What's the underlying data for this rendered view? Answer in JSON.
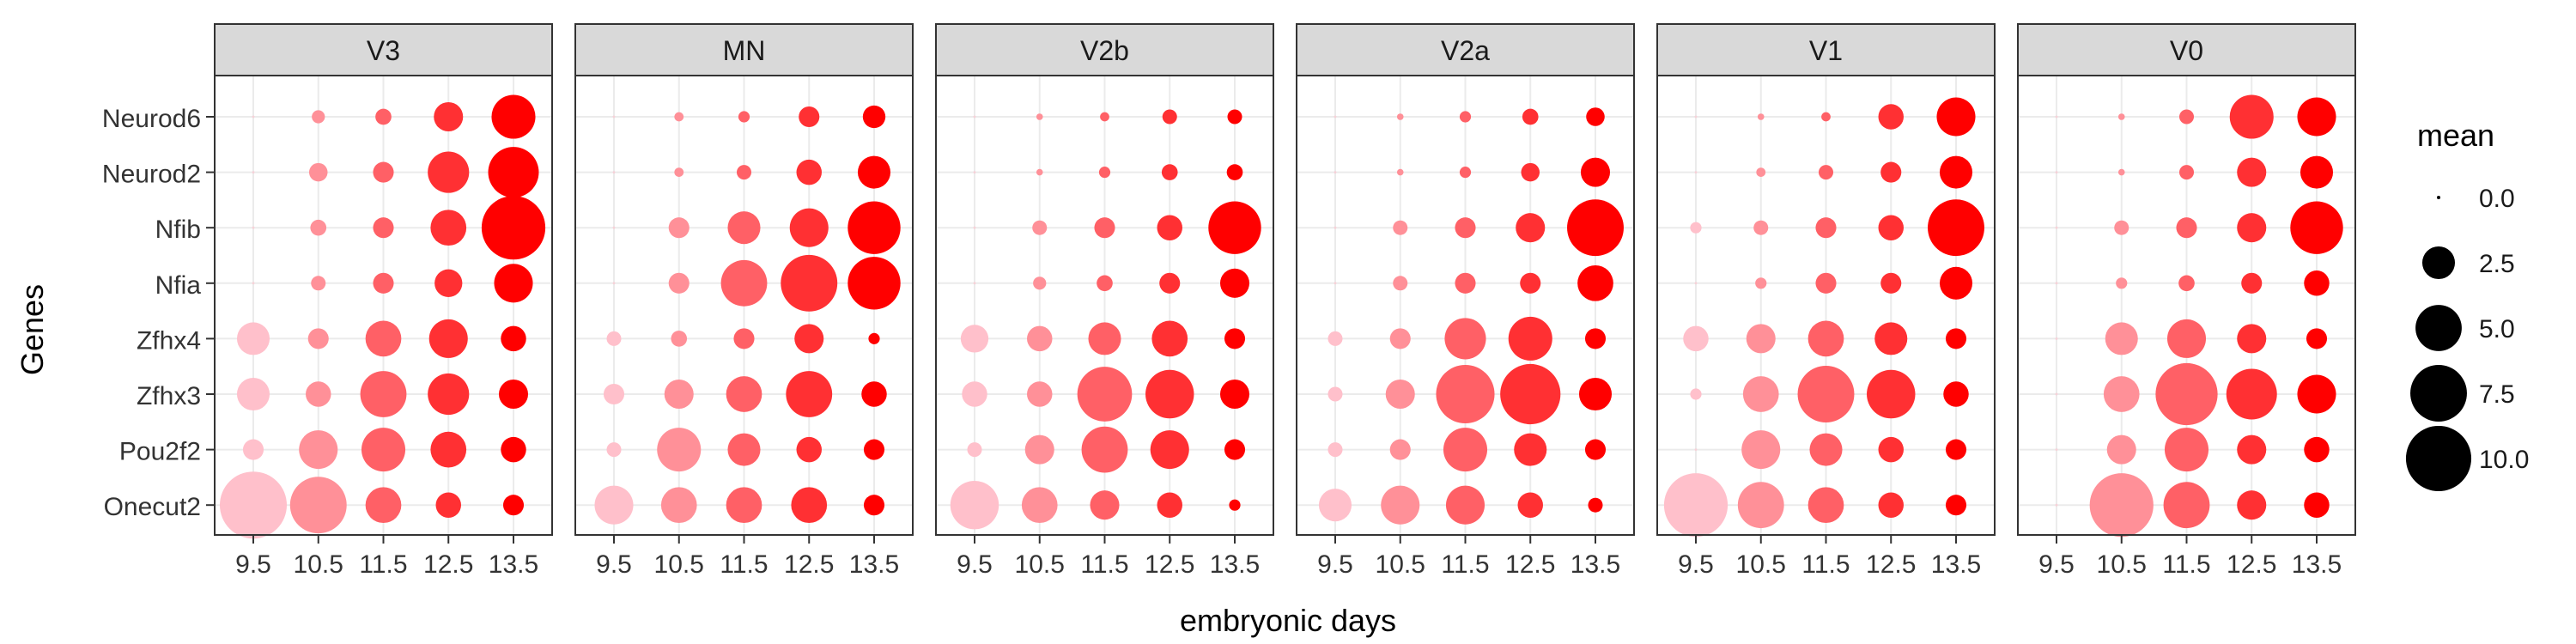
{
  "chart_data": {
    "type": "scatter",
    "title": "",
    "xlabel": "embryonic days",
    "ylabel": "Genes",
    "x": [
      "9.5",
      "10.5",
      "11.5",
      "12.5",
      "13.5"
    ],
    "genes": [
      "Neurod6",
      "Neurod2",
      "Nfib",
      "Nfia",
      "Zfhx4",
      "Zfhx3",
      "Pou2f2",
      "Onecut2"
    ],
    "size_scale": {
      "min": 0,
      "max": 10.5
    },
    "color_low": "#ffc0cb",
    "color_high": "#ff0000",
    "grid": true,
    "panels": [
      {
        "name": "V3",
        "values": {
          "Neurod6": [
            0,
            0.4,
            0.6,
            2.0,
            4.5
          ],
          "Neurod2": [
            0,
            0.8,
            1.0,
            4.0,
            6.0
          ],
          "Nfib": [
            0,
            0.6,
            1.0,
            3.0,
            9.5
          ],
          "Nfia": [
            0,
            0.5,
            1.0,
            1.8,
            3.5
          ],
          "Zfhx4": [
            2.5,
            1.0,
            3.0,
            3.5,
            1.5
          ],
          "Zfhx3": [
            2.5,
            1.5,
            5.0,
            4.0,
            2.0
          ],
          "Pou2f2": [
            1.0,
            3.5,
            4.5,
            3.0,
            1.5
          ],
          "Onecut2": [
            10.5,
            7.5,
            3.0,
            1.5,
            1.0
          ]
        }
      },
      {
        "name": "MN",
        "values": {
          "Neurod6": [
            0,
            0.2,
            0.3,
            1.0,
            1.2
          ],
          "Neurod2": [
            0,
            0.2,
            0.5,
            1.5,
            2.5
          ],
          "Nfib": [
            0,
            1.0,
            2.5,
            3.5,
            6.5
          ],
          "Nfia": [
            0,
            1.0,
            5.0,
            7.5,
            6.5
          ],
          "Zfhx4": [
            0.5,
            0.6,
            1.0,
            2.0,
            0.3
          ],
          "Zfhx3": [
            1.0,
            2.0,
            3.0,
            5.0,
            1.5
          ],
          "Pou2f2": [
            0.5,
            4.5,
            2.5,
            1.5,
            1.0
          ],
          "Onecut2": [
            3.5,
            3.0,
            3.0,
            3.0,
            1.0
          ]
        }
      },
      {
        "name": "V2b",
        "values": {
          "Neurod6": [
            0,
            0.1,
            0.2,
            0.5,
            0.5
          ],
          "Neurod2": [
            0,
            0.1,
            0.3,
            0.6,
            0.6
          ],
          "Nfib": [
            0,
            0.5,
            1.0,
            1.5,
            6.5
          ],
          "Nfia": [
            0,
            0.4,
            0.6,
            1.0,
            2.0
          ],
          "Zfhx4": [
            1.8,
            1.5,
            2.5,
            3.0,
            1.0
          ],
          "Zfhx3": [
            1.5,
            1.5,
            7.0,
            5.5,
            2.0
          ],
          "Pou2f2": [
            0.5,
            2.0,
            5.0,
            3.5,
            1.0
          ],
          "Onecut2": [
            5.5,
            3.0,
            2.0,
            1.5,
            0.3
          ]
        }
      },
      {
        "name": "V2a",
        "values": {
          "Neurod6": [
            0,
            0.1,
            0.3,
            0.6,
            0.8
          ],
          "Neurod2": [
            0,
            0.1,
            0.3,
            0.8,
            2.0
          ],
          "Nfib": [
            0,
            0.5,
            1.0,
            2.0,
            7.5
          ],
          "Nfia": [
            0,
            0.5,
            1.0,
            1.0,
            3.0
          ],
          "Zfhx4": [
            0.5,
            1.0,
            4.0,
            4.5,
            1.0
          ],
          "Zfhx3": [
            0.5,
            2.0,
            8.0,
            8.5,
            2.5
          ],
          "Pou2f2": [
            0.5,
            1.0,
            4.5,
            2.5,
            1.0
          ],
          "Onecut2": [
            2.5,
            3.5,
            3.5,
            1.5,
            0.5
          ]
        }
      },
      {
        "name": "V1",
        "values": {
          "Neurod6": [
            0,
            0.1,
            0.2,
            1.5,
            3.5
          ],
          "Neurod2": [
            0,
            0.2,
            0.5,
            1.0,
            2.5
          ],
          "Nfib": [
            0.3,
            0.5,
            1.0,
            1.5,
            7.5
          ],
          "Nfia": [
            0,
            0.3,
            1.0,
            1.0,
            2.5
          ],
          "Zfhx4": [
            1.5,
            2.0,
            3.0,
            2.5,
            1.0
          ],
          "Zfhx3": [
            0.3,
            3.0,
            7.5,
            5.5,
            1.5
          ],
          "Pou2f2": [
            0,
            3.5,
            2.5,
            1.5,
            1.0
          ],
          "Onecut2": [
            9.5,
            5.0,
            3.0,
            1.5,
            1.0
          ]
        }
      },
      {
        "name": "V0",
        "values": {
          "Neurod6": [
            0,
            0.1,
            0.5,
            4.5,
            3.5
          ],
          "Neurod2": [
            0,
            0.1,
            0.5,
            2.0,
            2.5
          ],
          "Nfib": [
            0,
            0.5,
            1.0,
            2.0,
            6.5
          ],
          "Nfia": [
            0,
            0.3,
            0.6,
            1.0,
            1.5
          ],
          "Zfhx4": [
            0,
            2.5,
            3.5,
            2.0,
            1.0
          ],
          "Zfhx3": [
            0,
            3.0,
            9.0,
            6.0,
            3.5
          ],
          "Pou2f2": [
            0,
            2.0,
            4.5,
            2.0,
            1.5
          ],
          "Onecut2": [
            0,
            9.5,
            5.0,
            2.0,
            1.5
          ]
        }
      }
    ],
    "legend": {
      "title": "mean",
      "placement": "right",
      "entries": [
        "0.0",
        "2.5",
        "5.0",
        "7.5",
        "10.0"
      ],
      "values": [
        0,
        2.5,
        5.0,
        7.5,
        10.0
      ]
    }
  }
}
